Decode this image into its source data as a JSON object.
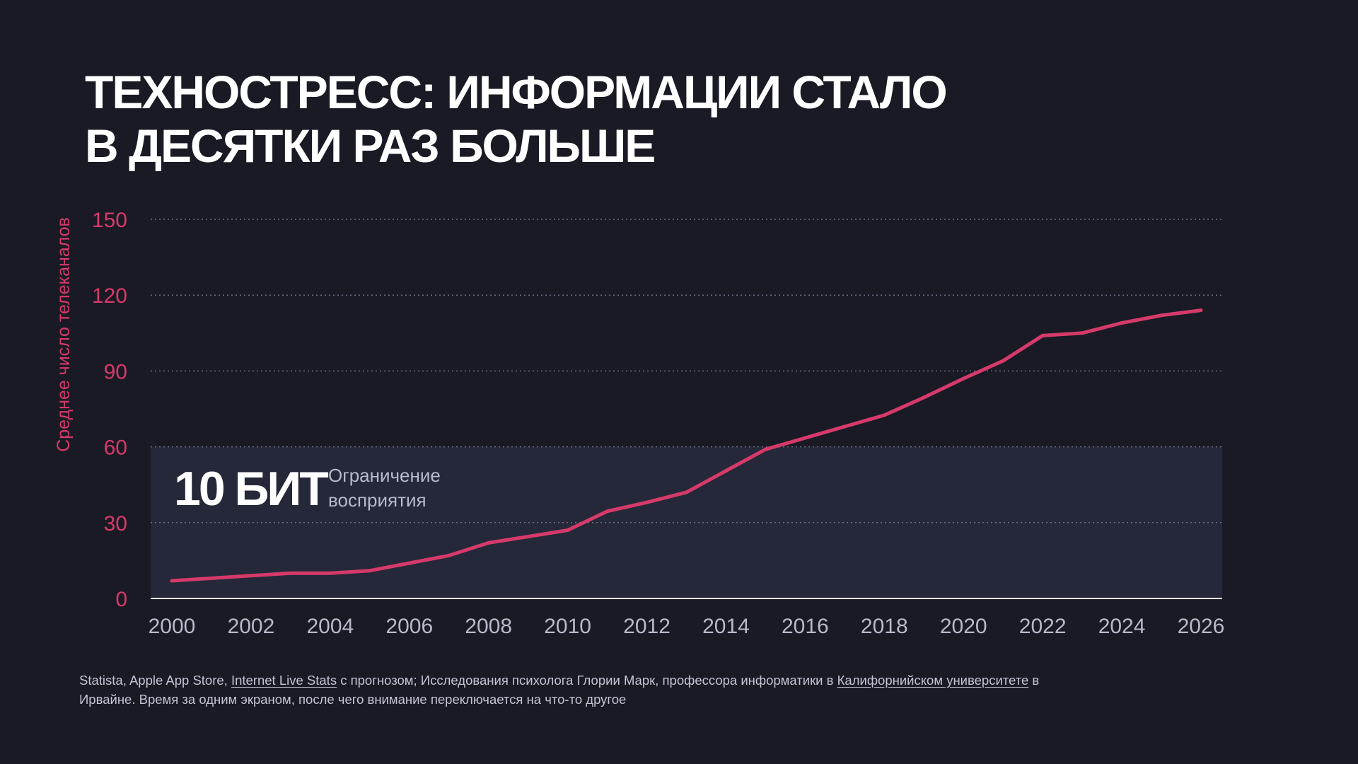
{
  "title": {
    "line1": "ТЕХНОСТРЕСС: ИНФОРМАЦИИ СТАЛО",
    "line2": "В ДЕСЯТКИ РАЗ БОЛЬШЕ"
  },
  "colors": {
    "background": "#191a24",
    "band": "#252838",
    "series": "#d63a6a",
    "axis_tick": "#d63a6a",
    "x_tick": "#b7bacb",
    "grid": "#6a6d80",
    "annotation_sub": "#b7bacb"
  },
  "annotation": {
    "value": "10 БИТ",
    "label_line1": "Ограничение",
    "label_line2": "восприятия"
  },
  "footnote": {
    "part1": "Statista, Apple App Store, ",
    "link1": "Internet Live Stats",
    "part2": " с прогнозом; Исследования психолога Глории Марк, профессора информатики в ",
    "link2": "Калифорнийском университете",
    "part3": " в Ирвайне. Время за одним экраном, после чего внимание переключается на что-то другое"
  },
  "chart_data": {
    "type": "line",
    "ylabel": "Среднее число телеканалов",
    "xlim": [
      2000,
      2026
    ],
    "ylim": [
      0,
      150
    ],
    "x_ticks": [
      "2000",
      "2002",
      "2004",
      "2006",
      "2008",
      "2010",
      "2012",
      "2014",
      "2016",
      "2018",
      "2020",
      "2022",
      "2024",
      "2026"
    ],
    "y_ticks": [
      "0",
      "30",
      "60",
      "90",
      "120",
      "150"
    ],
    "grid": true,
    "band": {
      "from": 0,
      "to": 60
    },
    "series": [
      {
        "x": [
          2000,
          2001,
          2002,
          2003,
          2004,
          2005,
          2006,
          2007,
          2008,
          2009,
          2010,
          2011,
          2012,
          2013,
          2014,
          2015,
          2016,
          2017,
          2018,
          2019,
          2020,
          2021,
          2022,
          2023,
          2024,
          2025,
          2026
        ],
        "values": [
          7,
          8,
          9,
          10,
          10,
          11,
          14,
          17,
          22,
          24.5,
          27,
          34.5,
          38,
          42,
          50.5,
          59,
          63.5,
          68,
          72.5,
          79.5,
          87,
          94,
          104,
          105,
          109,
          112,
          114
        ]
      }
    ]
  }
}
